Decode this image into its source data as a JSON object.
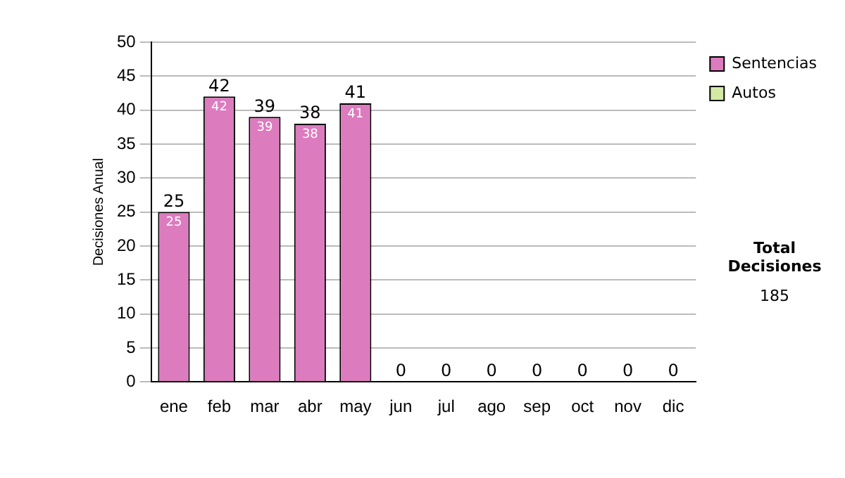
{
  "chart_data": {
    "type": "bar",
    "stacked": true,
    "ylabel": "Decisiones Anual",
    "categories": [
      "ene",
      "feb",
      "mar",
      "abr",
      "may",
      "jun",
      "jul",
      "ago",
      "sep",
      "oct",
      "nov",
      "dic"
    ],
    "series": [
      {
        "name": "Sentencias",
        "color": "#dd7bbf",
        "values": [
          25,
          42,
          39,
          38,
          41,
          0,
          0,
          0,
          0,
          0,
          0,
          0
        ],
        "value_labels": [
          "25",
          "42",
          "39",
          "38",
          "41",
          null,
          null,
          null,
          null,
          null,
          null,
          null
        ]
      },
      {
        "name": "Autos",
        "color": "#d4eaa4",
        "values": [
          0,
          0,
          0,
          0,
          0,
          0,
          0,
          0,
          0,
          0,
          0,
          0
        ]
      }
    ],
    "totals": [
      "25",
      "42",
      "39",
      "38",
      "41",
      "0",
      "0",
      "0",
      "0",
      "0",
      "0",
      "0"
    ],
    "ylim": [
      0,
      50
    ],
    "yticks": [
      0,
      5,
      10,
      15,
      20,
      25,
      30,
      35,
      40,
      45,
      50
    ],
    "grid": "y",
    "legend": "right",
    "annotations": [
      "Total Decisiones",
      "185"
    ]
  }
}
